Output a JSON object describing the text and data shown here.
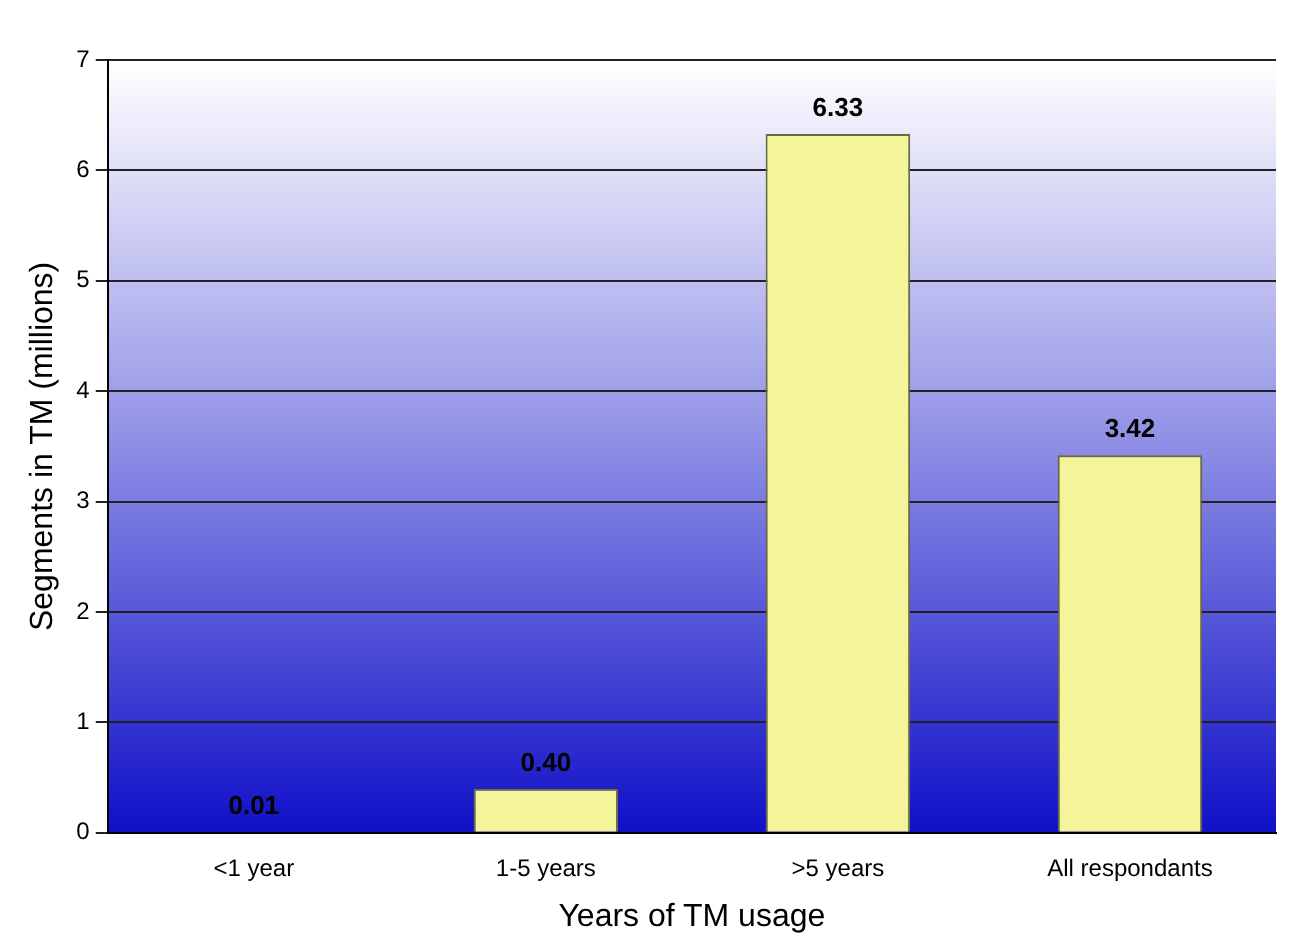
{
  "chart_data": {
    "type": "bar",
    "xlabel": "Years of TM usage",
    "ylabel": "Segments in TM (millions)",
    "categories": [
      "<1 year",
      "1-5 years",
      ">5 years",
      "All respondants"
    ],
    "values": [
      0.01,
      0.4,
      6.33,
      3.42
    ],
    "value_labels": [
      "0.01",
      "0.40",
      "6.33",
      "3.42"
    ],
    "color": "#f4f49a",
    "ylim": [
      0,
      7
    ],
    "yticks": [
      0,
      1,
      2,
      3,
      4,
      5,
      6,
      7
    ],
    "grid": "y",
    "legend": false
  }
}
